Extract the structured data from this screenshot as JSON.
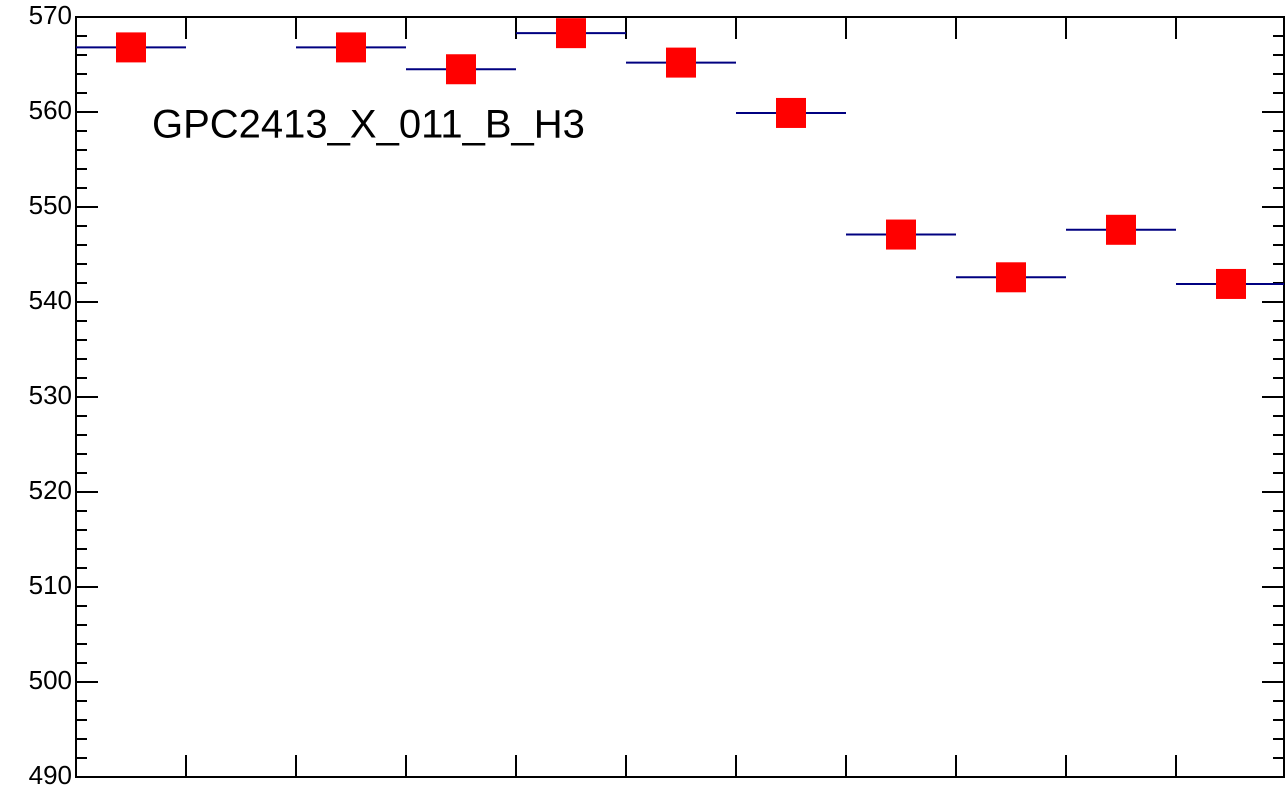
{
  "chart_data": {
    "type": "scatter",
    "annotation": "GPC2413_X_011_B_H3",
    "categories": [
      null,
      null,
      null,
      null,
      null,
      null,
      null,
      null,
      null,
      null,
      null
    ],
    "values": [
      566.8,
      null,
      566.8,
      564.5,
      568.3,
      565.2,
      559.9,
      547.1,
      542.6,
      547.6,
      541.9
    ],
    "color": "#ff0000",
    "error_color": "#000080",
    "ylim": [
      490,
      570
    ],
    "yticks": [
      490,
      500,
      510,
      520,
      530,
      540,
      550,
      560,
      570
    ],
    "yminorticks": [
      492,
      494,
      496,
      498,
      502,
      504,
      506,
      508,
      512,
      514,
      516,
      518,
      522,
      524,
      526,
      528,
      532,
      534,
      536,
      538,
      542,
      544,
      546,
      548,
      552,
      554,
      556,
      558,
      562,
      564,
      566,
      568
    ]
  }
}
